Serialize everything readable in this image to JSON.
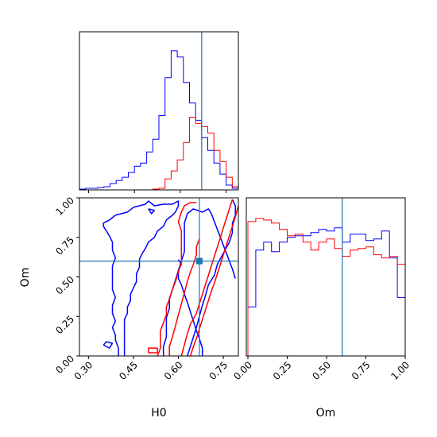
{
  "chart_data": {
    "type": "corner",
    "truth": {
      "H0": 0.67,
      "Om": 0.6
    },
    "truth_color": "#1f77b4",
    "series": [
      {
        "color": "#0000ff"
      },
      {
        "color": "#ff0000"
      }
    ],
    "panels": [
      {
        "id": "hist-H0",
        "type": "histogram",
        "xlim": [
          0.27,
          0.79
        ],
        "xticks": [
          0.3,
          0.45,
          0.6,
          0.75
        ],
        "show_tick_labels": false,
        "bin_edges": [
          0.27,
          0.29,
          0.31,
          0.33,
          0.35,
          0.37,
          0.39,
          0.41,
          0.43,
          0.45,
          0.47,
          0.49,
          0.51,
          0.53,
          0.55,
          0.57,
          0.59,
          0.61,
          0.63,
          0.65,
          0.67,
          0.69,
          0.71,
          0.73,
          0.75,
          0.77,
          0.79
        ],
        "ylim": [
          0,
          1.0
        ],
        "counts": [
          [
            0.005,
            0.01,
            0.01,
            0.015,
            0.02,
            0.04,
            0.06,
            0.08,
            0.11,
            0.15,
            0.17,
            0.24,
            0.32,
            0.47,
            0.71,
            0.88,
            0.84,
            0.68,
            0.55,
            0.44,
            0.33,
            0.25,
            0.17,
            0.1,
            0.03,
            0.01
          ],
          [
            0,
            0,
            0,
            0,
            0,
            0,
            0,
            0,
            0,
            0,
            0,
            0,
            0.005,
            0.01,
            0.07,
            0.12,
            0.19,
            0.3,
            0.46,
            0.42,
            0.4,
            0.36,
            0.25,
            0.18,
            0.08,
            0.02
          ]
        ]
      },
      {
        "id": "hist-Om",
        "type": "histogram",
        "xlim": [
          -0.01,
          1.0
        ],
        "xticks": [
          0.0,
          0.25,
          0.5,
          0.75,
          1.0
        ],
        "tick_labels": [
          "0.00",
          "0.25",
          "0.50",
          "0.75",
          "1.00"
        ],
        "xlabel": "Om",
        "ylim": [
          0,
          1.0
        ],
        "bin_edges": [
          0.0,
          0.05,
          0.1,
          0.15,
          0.2,
          0.25,
          0.3,
          0.35,
          0.4,
          0.45,
          0.5,
          0.55,
          0.6,
          0.65,
          0.7,
          0.75,
          0.8,
          0.85,
          0.9,
          0.95,
          1.0
        ],
        "counts": [
          [
            0.31,
            0.67,
            0.72,
            0.66,
            0.72,
            0.75,
            0.76,
            0.76,
            0.78,
            0.8,
            0.79,
            0.81,
            0.72,
            0.77,
            0.77,
            0.73,
            0.74,
            0.79,
            0.62,
            0.37
          ],
          [
            0.85,
            0.87,
            0.86,
            0.84,
            0.8,
            0.76,
            0.77,
            0.72,
            0.67,
            0.72,
            0.74,
            0.68,
            0.63,
            0.67,
            0.68,
            0.69,
            0.64,
            0.62,
            0.63,
            0.58
          ]
        ]
      },
      {
        "id": "contour-H0-Om",
        "type": "contour",
        "xlim": [
          0.27,
          0.8
        ],
        "ylim": [
          0.0,
          1.0
        ],
        "xticks": [
          0.3,
          0.45,
          0.6,
          0.75
        ],
        "x_tick_labels": [
          "0.30",
          "0.45",
          "0.60",
          "0.75"
        ],
        "yticks": [
          0.0,
          0.25,
          0.5,
          0.75,
          1.0
        ],
        "y_tick_labels": [
          "0.00",
          "0.25",
          "0.50",
          "0.75",
          "1.00"
        ],
        "xlabel": "H0",
        "ylabel": "Om",
        "contours": [
          [
            [
              [
                0.35,
                0.82
              ],
              [
                0.35,
                0.84
              ],
              [
                0.37,
                0.86
              ],
              [
                0.39,
                0.89
              ],
              [
                0.43,
                0.91
              ],
              [
                0.45,
                0.94
              ],
              [
                0.47,
                0.95
              ],
              [
                0.49,
                0.96
              ],
              [
                0.5,
                0.98
              ],
              [
                0.52,
                0.95
              ],
              [
                0.55,
                0.96
              ],
              [
                0.58,
                0.96
              ],
              [
                0.6,
                0.98
              ],
              [
                0.6,
                0.95
              ],
              [
                0.59,
                0.91
              ],
              [
                0.58,
                0.89
              ],
              [
                0.56,
                0.86
              ],
              [
                0.55,
                0.82
              ],
              [
                0.53,
                0.79
              ],
              [
                0.52,
                0.75
              ],
              [
                0.5,
                0.72
              ],
              [
                0.49,
                0.68
              ],
              [
                0.48,
                0.65
              ],
              [
                0.47,
                0.61
              ],
              [
                0.47,
                0.56
              ],
              [
                0.46,
                0.52
              ],
              [
                0.46,
                0.47
              ],
              [
                0.45,
                0.43
              ],
              [
                0.44,
                0.39
              ],
              [
                0.44,
                0.35
              ],
              [
                0.43,
                0.31
              ],
              [
                0.43,
                0.27
              ],
              [
                0.42,
                0.23
              ],
              [
                0.42,
                0.18
              ],
              [
                0.42,
                0.13
              ],
              [
                0.42,
                0.08
              ],
              [
                0.42,
                0.03
              ],
              [
                0.42,
                0.0
              ]
            ],
            [
              [
                0.4,
                0.0
              ],
              [
                0.4,
                0.05
              ],
              [
                0.39,
                0.1
              ],
              [
                0.39,
                0.13
              ],
              [
                0.38,
                0.18
              ],
              [
                0.39,
                0.22
              ],
              [
                0.38,
                0.27
              ],
              [
                0.38,
                0.32
              ],
              [
                0.39,
                0.37
              ],
              [
                0.38,
                0.42
              ],
              [
                0.38,
                0.47
              ],
              [
                0.38,
                0.52
              ],
              [
                0.38,
                0.57
              ],
              [
                0.39,
                0.62
              ],
              [
                0.38,
                0.67
              ],
              [
                0.38,
                0.72
              ],
              [
                0.37,
                0.76
              ],
              [
                0.36,
                0.79
              ],
              [
                0.35,
                0.82
              ]
            ],
            [
              [
                0.35,
                0.07
              ],
              [
                0.37,
                0.05
              ],
              [
                0.38,
                0.08
              ],
              [
                0.36,
                0.09
              ],
              [
                0.35,
                0.07
              ]
            ],
            [
              [
                0.5,
                0.93
              ],
              [
                0.51,
                0.9
              ],
              [
                0.52,
                0.92
              ],
              [
                0.5,
                0.93
              ]
            ],
            [
              [
                0.6,
                0.61
              ],
              [
                0.61,
                0.58
              ],
              [
                0.6,
                0.54
              ],
              [
                0.6,
                0.49
              ],
              [
                0.61,
                0.45
              ],
              [
                0.62,
                0.39
              ],
              [
                0.63,
                0.34
              ],
              [
                0.64,
                0.28
              ],
              [
                0.65,
                0.22
              ],
              [
                0.66,
                0.16
              ],
              [
                0.67,
                0.11
              ],
              [
                0.68,
                0.05
              ],
              [
                0.68,
                0.0
              ]
            ],
            [
              [
                0.63,
                0.0
              ],
              [
                0.64,
                0.06
              ],
              [
                0.65,
                0.12
              ],
              [
                0.66,
                0.18
              ],
              [
                0.67,
                0.25
              ],
              [
                0.68,
                0.32
              ],
              [
                0.69,
                0.38
              ],
              [
                0.7,
                0.45
              ],
              [
                0.72,
                0.51
              ],
              [
                0.73,
                0.58
              ],
              [
                0.75,
                0.65
              ],
              [
                0.77,
                0.72
              ],
              [
                0.78,
                0.78
              ],
              [
                0.78,
                0.84
              ],
              [
                0.79,
                0.89
              ],
              [
                0.79,
                0.95
              ],
              [
                0.78,
                0.99
              ]
            ],
            [
              [
                0.55,
                0.0
              ],
              [
                0.55,
                0.06
              ],
              [
                0.56,
                0.12
              ],
              [
                0.56,
                0.18
              ],
              [
                0.56,
                0.24
              ],
              [
                0.57,
                0.3
              ],
              [
                0.57,
                0.36
              ],
              [
                0.58,
                0.42
              ],
              [
                0.59,
                0.48
              ],
              [
                0.6,
                0.54
              ],
              [
                0.61,
                0.6
              ],
              [
                0.62,
                0.66
              ],
              [
                0.62,
                0.72
              ],
              [
                0.62,
                0.78
              ],
              [
                0.62,
                0.84
              ],
              [
                0.63,
                0.9
              ],
              [
                0.65,
                0.93
              ],
              [
                0.68,
                0.91
              ],
              [
                0.7,
                0.93
              ],
              [
                0.71,
                0.9
              ],
              [
                0.72,
                0.85
              ],
              [
                0.73,
                0.8
              ],
              [
                0.74,
                0.75
              ],
              [
                0.75,
                0.7
              ],
              [
                0.76,
                0.65
              ],
              [
                0.77,
                0.6
              ],
              [
                0.78,
                0.55
              ],
              [
                0.79,
                0.49
              ]
            ]
          ],
          [
            [
              [
                0.53,
                0.0
              ],
              [
                0.54,
                0.05
              ],
              [
                0.54,
                0.1
              ],
              [
                0.54,
                0.16
              ],
              [
                0.55,
                0.21
              ],
              [
                0.56,
                0.26
              ],
              [
                0.56,
                0.31
              ],
              [
                0.57,
                0.36
              ],
              [
                0.58,
                0.42
              ],
              [
                0.59,
                0.47
              ],
              [
                0.6,
                0.53
              ],
              [
                0.61,
                0.59
              ],
              [
                0.61,
                0.65
              ],
              [
                0.61,
                0.72
              ],
              [
                0.61,
                0.79
              ],
              [
                0.6,
                0.85
              ],
              [
                0.61,
                0.91
              ],
              [
                0.62,
                0.95
              ],
              [
                0.64,
                0.97
              ],
              [
                0.66,
                0.97
              ]
            ],
            [
              [
                0.57,
                0.0
              ],
              [
                0.57,
                0.06
              ],
              [
                0.58,
                0.12
              ],
              [
                0.59,
                0.19
              ],
              [
                0.6,
                0.26
              ],
              [
                0.61,
                0.33
              ],
              [
                0.62,
                0.4
              ],
              [
                0.63,
                0.47
              ],
              [
                0.64,
                0.53
              ],
              [
                0.65,
                0.58
              ],
              [
                0.66,
                0.64
              ],
              [
                0.66,
                0.69
              ],
              [
                0.67,
                0.74
              ]
            ],
            [
              [
                0.5,
                0.02
              ],
              [
                0.5,
                0.05
              ],
              [
                0.53,
                0.05
              ],
              [
                0.53,
                0.02
              ],
              [
                0.5,
                0.02
              ]
            ],
            [
              [
                0.61,
                0.0
              ],
              [
                0.62,
                0.07
              ],
              [
                0.63,
                0.14
              ],
              [
                0.64,
                0.2
              ],
              [
                0.66,
                0.27
              ],
              [
                0.67,
                0.33
              ],
              [
                0.68,
                0.39
              ],
              [
                0.69,
                0.45
              ],
              [
                0.7,
                0.51
              ],
              [
                0.71,
                0.57
              ],
              [
                0.72,
                0.63
              ],
              [
                0.73,
                0.69
              ],
              [
                0.74,
                0.75
              ],
              [
                0.75,
                0.81
              ],
              [
                0.76,
                0.87
              ],
              [
                0.77,
                0.93
              ],
              [
                0.78,
                0.99
              ]
            ],
            [
              [
                0.64,
                0.0
              ],
              [
                0.65,
                0.06
              ],
              [
                0.66,
                0.11
              ],
              [
                0.67,
                0.17
              ],
              [
                0.68,
                0.23
              ],
              [
                0.69,
                0.29
              ],
              [
                0.7,
                0.35
              ],
              [
                0.71,
                0.41
              ],
              [
                0.72,
                0.46
              ],
              [
                0.73,
                0.52
              ],
              [
                0.74,
                0.58
              ],
              [
                0.75,
                0.64
              ],
              [
                0.76,
                0.7
              ],
              [
                0.77,
                0.76
              ],
              [
                0.78,
                0.82
              ],
              [
                0.79,
                0.88
              ],
              [
                0.8,
                0.95
              ]
            ]
          ]
        ]
      }
    ]
  }
}
